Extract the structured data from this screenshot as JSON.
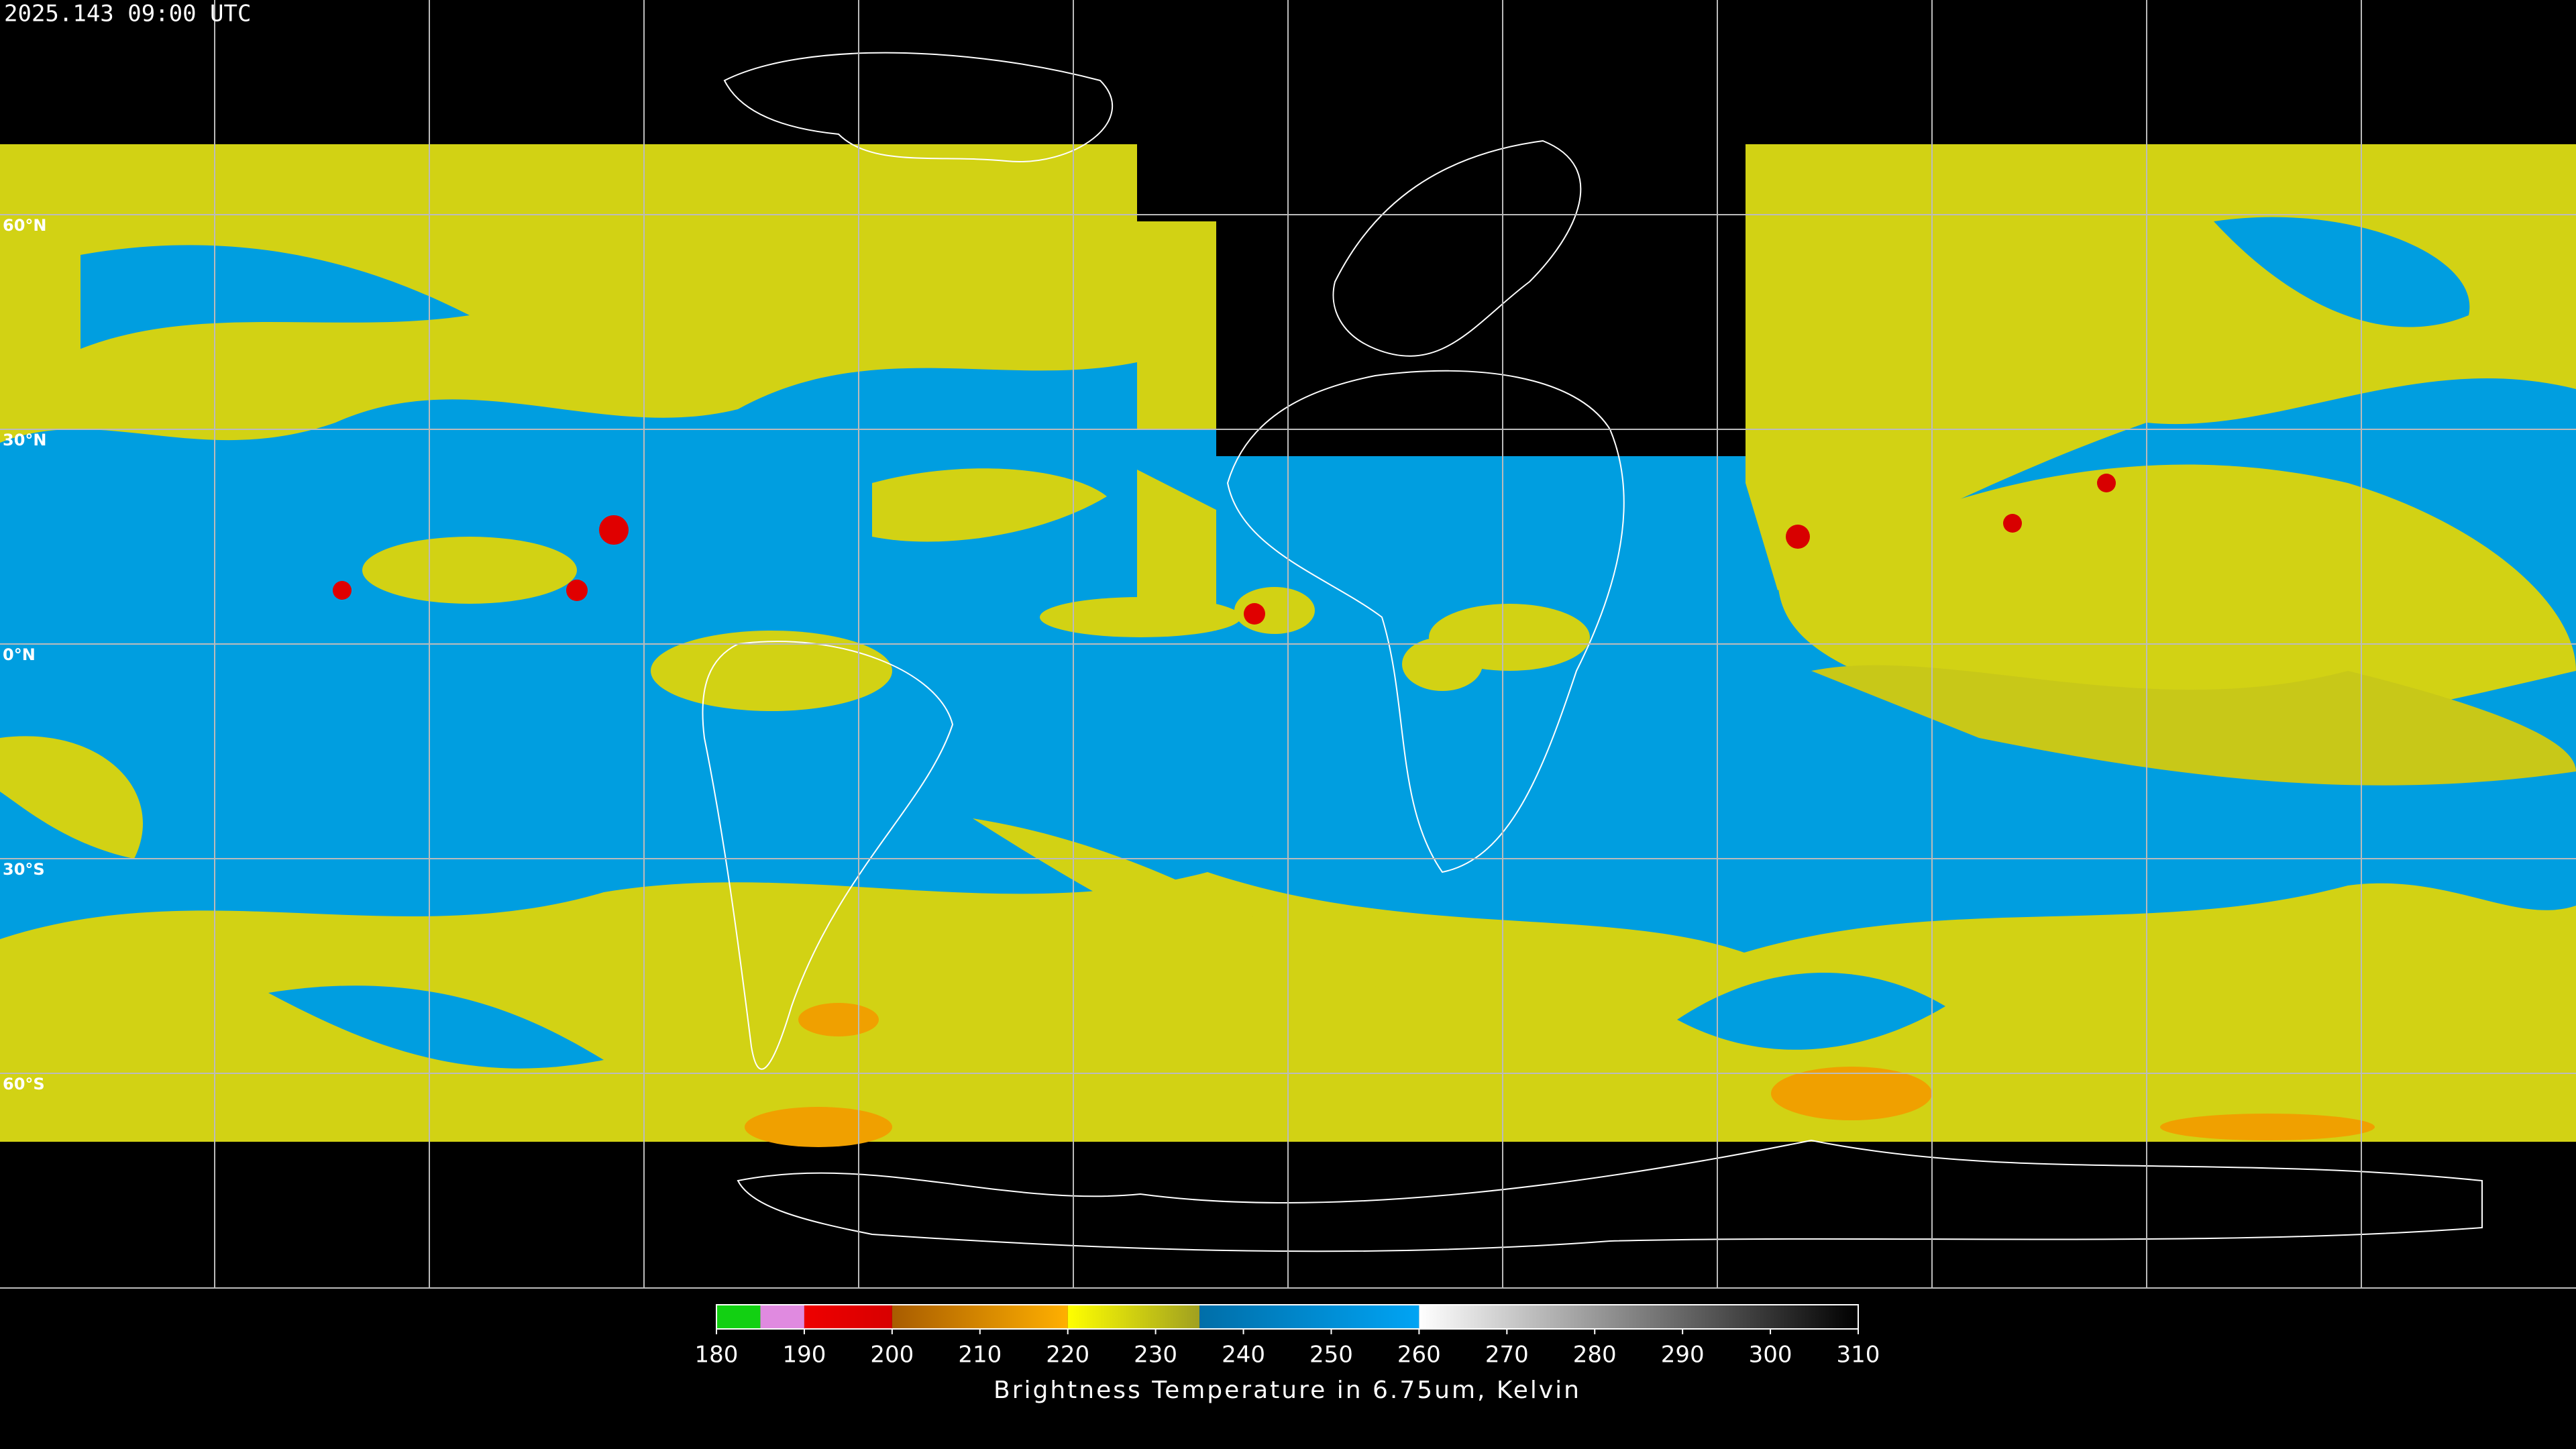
{
  "timestamp": "2025.143 09:00 UTC",
  "latitude_labels": [
    "60°N",
    "30°N",
    "0°N",
    "30°S",
    "60°S"
  ],
  "colorbar": {
    "title": "Brightness Temperature in 6.75um, Kelvin",
    "range": [
      180,
      310
    ],
    "ticks": [
      180,
      190,
      200,
      210,
      220,
      230,
      240,
      250,
      260,
      270,
      280,
      290,
      300,
      310
    ],
    "segments": [
      {
        "from": 180,
        "to": 185,
        "start": "#12d012",
        "end": "#12d012"
      },
      {
        "from": 185,
        "to": 190,
        "start": "#e08ae0",
        "end": "#e08ae0"
      },
      {
        "from": 190,
        "to": 200,
        "start": "#ee0000",
        "end": "#d80000"
      },
      {
        "from": 200,
        "to": 220,
        "start": "#a85c00",
        "end": "#ffb000"
      },
      {
        "from": 220,
        "to": 235,
        "start": "#ffff00",
        "end": "#a0a020"
      },
      {
        "from": 235,
        "to": 260,
        "start": "#006ea8",
        "end": "#00a4f4"
      },
      {
        "from": 260,
        "to": 310,
        "start": "#ffffff",
        "end": "#000000"
      }
    ]
  }
}
